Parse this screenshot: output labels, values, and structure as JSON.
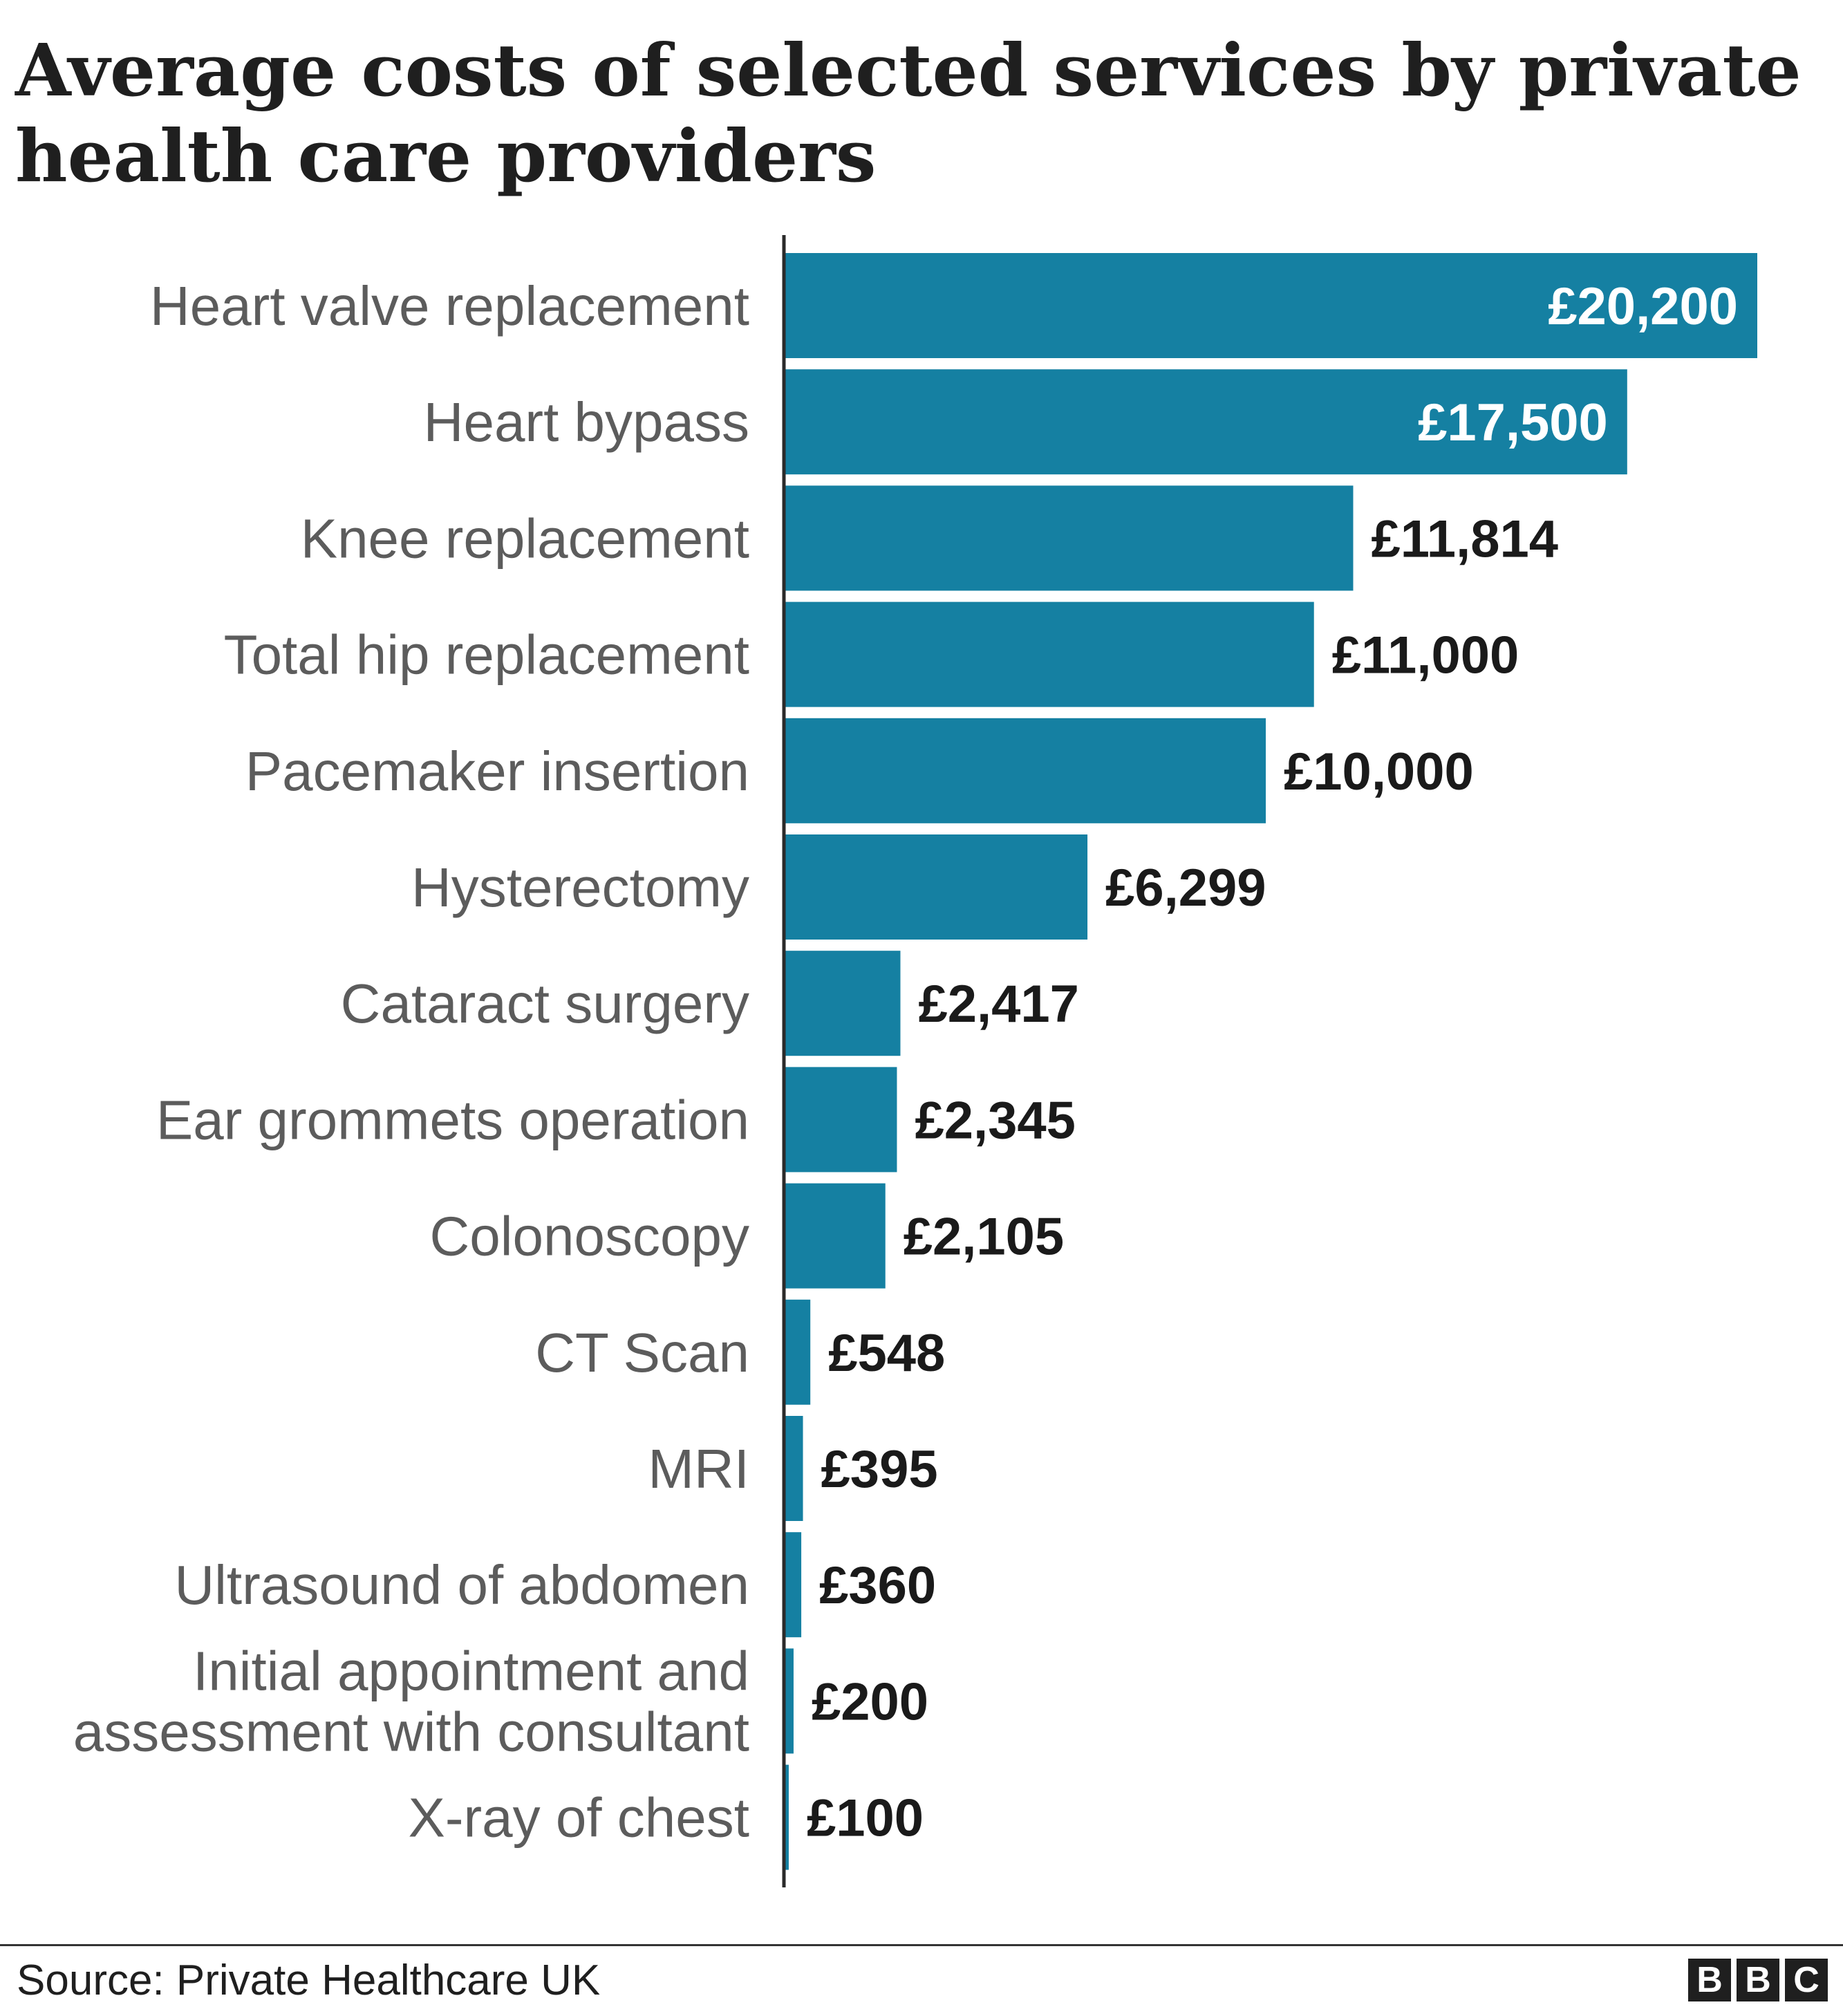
{
  "chart_data": {
    "type": "bar",
    "orientation": "horizontal",
    "title": "Average costs of selected services by private health care providers",
    "categories": [
      "Heart valve replacement",
      "Heart bypass",
      "Knee replacement",
      "Total hip replacement",
      "Pacemaker insertion",
      "Hysterectomy",
      "Cataract surgery",
      "Ear grommets operation",
      "Colonoscopy",
      "CT Scan",
      "MRI",
      "Ultrasound of abdomen",
      "Initial appointment and assessment with consultant",
      "X-ray of chest"
    ],
    "values": [
      20200,
      17500,
      11814,
      11000,
      10000,
      6299,
      2417,
      2345,
      2105,
      548,
      395,
      360,
      200,
      100
    ],
    "value_labels": [
      "£20,200",
      "£17,500",
      "£11,814",
      "£11,000",
      "£10,000",
      "£6,299",
      "£2,417",
      "£2,345",
      "£2,105",
      "£548",
      "£395",
      "£360",
      "£200",
      "£100"
    ],
    "xlabel": "",
    "ylabel": "",
    "xlim": [
      0,
      20200
    ],
    "grid": false,
    "legend": "none"
  },
  "colors": {
    "bar": "#1580a2",
    "label_inside": "#ffffff",
    "label_outside": "#1a1a1a",
    "category_text": "#5c5c5c",
    "axis": "#2b2b2b"
  },
  "footer": {
    "source": "Source: Private Healthcare UK",
    "logo_letters": [
      "B",
      "B",
      "C"
    ]
  }
}
